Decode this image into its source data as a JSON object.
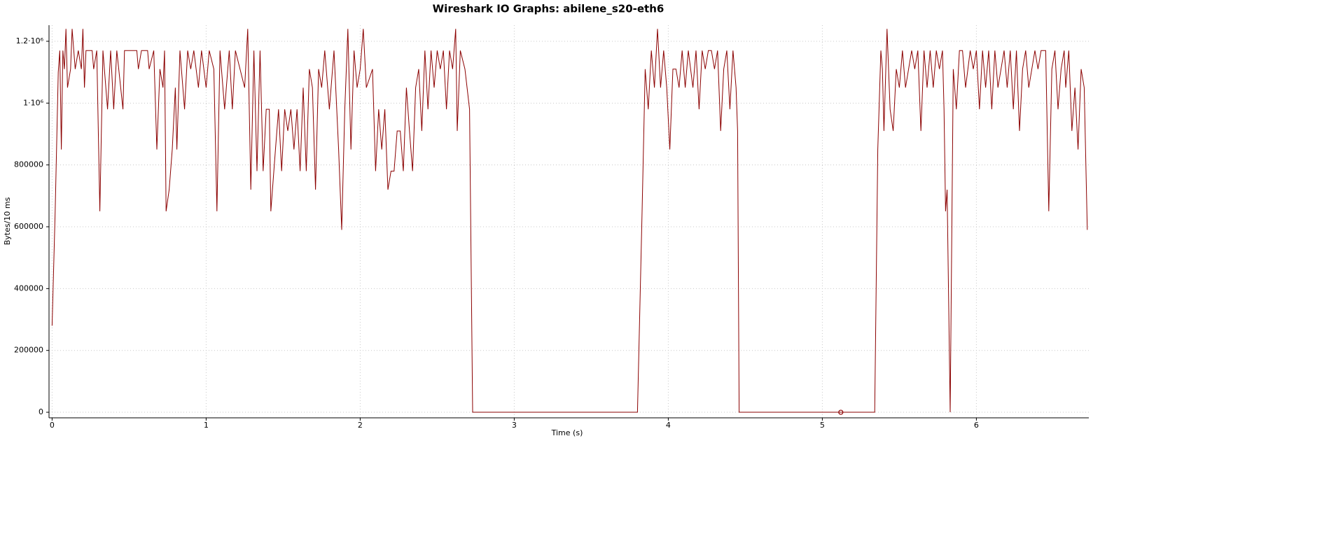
{
  "chart_data": {
    "type": "line",
    "title": "Wireshark IO Graphs: abilene_s20-eth6",
    "x_label": "Time (s)",
    "y_label": "Bytes/10 ms",
    "color": "#8b0000",
    "grid": true,
    "xlim": [
      -0.02,
      6.73
    ],
    "ylim": [
      -18000,
      1252000
    ],
    "xticks": [
      0,
      1,
      2,
      3,
      4,
      5,
      6
    ],
    "yticks": [
      0,
      200000,
      400000,
      600000,
      800000,
      {
        "value": 1000000,
        "label": "1·10⁶"
      },
      {
        "value": 1200000,
        "label": "1.2·10⁶"
      }
    ],
    "tracer": {
      "x": 5.12,
      "y": 0
    },
    "x": [
      0.0,
      0.02,
      0.04,
      0.05,
      0.06,
      0.07,
      0.08,
      0.09,
      0.1,
      0.12,
      0.13,
      0.15,
      0.17,
      0.19,
      0.2,
      0.21,
      0.22,
      0.26,
      0.27,
      0.29,
      0.31,
      0.33,
      0.36,
      0.38,
      0.4,
      0.42,
      0.46,
      0.47,
      0.55,
      0.56,
      0.58,
      0.62,
      0.63,
      0.66,
      0.68,
      0.7,
      0.72,
      0.73,
      0.74,
      0.76,
      0.78,
      0.8,
      0.81,
      0.83,
      0.86,
      0.88,
      0.9,
      0.92,
      0.95,
      0.97,
      1.0,
      1.02,
      1.05,
      1.07,
      1.09,
      1.12,
      1.15,
      1.17,
      1.19,
      1.25,
      1.27,
      1.29,
      1.31,
      1.33,
      1.35,
      1.37,
      1.39,
      1.41,
      1.42,
      1.45,
      1.47,
      1.49,
      1.51,
      1.53,
      1.55,
      1.57,
      1.59,
      1.61,
      1.63,
      1.65,
      1.67,
      1.69,
      1.71,
      1.73,
      1.75,
      1.77,
      1.8,
      1.83,
      1.86,
      1.88,
      1.9,
      1.92,
      1.94,
      1.96,
      1.98,
      2.0,
      2.02,
      2.04,
      2.08,
      2.1,
      2.12,
      2.14,
      2.16,
      2.18,
      2.2,
      2.22,
      2.24,
      2.26,
      2.28,
      2.3,
      2.32,
      2.34,
      2.36,
      2.38,
      2.4,
      2.42,
      2.44,
      2.46,
      2.48,
      2.5,
      2.52,
      2.54,
      2.56,
      2.58,
      2.6,
      2.62,
      2.63,
      2.65,
      2.68,
      2.71,
      2.73,
      3.8,
      3.83,
      3.85,
      3.87,
      3.89,
      3.91,
      3.93,
      3.95,
      3.97,
      3.99,
      4.01,
      4.03,
      4.05,
      4.07,
      4.09,
      4.11,
      4.13,
      4.16,
      4.18,
      4.2,
      4.22,
      4.24,
      4.26,
      4.28,
      4.3,
      4.32,
      4.34,
      4.36,
      4.38,
      4.4,
      4.42,
      4.44,
      4.45,
      4.46,
      5.34,
      5.36,
      5.38,
      5.39,
      5.4,
      5.42,
      5.44,
      5.46,
      5.48,
      5.5,
      5.52,
      5.54,
      5.56,
      5.58,
      5.6,
      5.62,
      5.64,
      5.66,
      5.68,
      5.7,
      5.72,
      5.74,
      5.76,
      5.78,
      5.79,
      5.8,
      5.81,
      5.83,
      5.85,
      5.87,
      5.89,
      5.91,
      5.93,
      5.96,
      5.98,
      6.0,
      6.02,
      6.04,
      6.06,
      6.08,
      6.1,
      6.12,
      6.14,
      6.16,
      6.18,
      6.2,
      6.22,
      6.24,
      6.26,
      6.28,
      6.3,
      6.32,
      6.34,
      6.36,
      6.38,
      6.4,
      6.42,
      6.45,
      6.47,
      6.49,
      6.51,
      6.53,
      6.55,
      6.57,
      6.58,
      6.6,
      6.62,
      6.64,
      6.66,
      6.68,
      6.7,
      6.72
    ],
    "values": [
      280000,
      650000,
      1100000,
      1170000,
      850000,
      1170000,
      1110000,
      1240000,
      1050000,
      1110000,
      1240000,
      1110000,
      1170000,
      1110000,
      1240000,
      1050000,
      1170000,
      1170000,
      1110000,
      1170000,
      650000,
      1170000,
      980000,
      1170000,
      980000,
      1170000,
      980000,
      1170000,
      1170000,
      1110000,
      1170000,
      1170000,
      1110000,
      1170000,
      850000,
      1110000,
      1050000,
      1170000,
      650000,
      720000,
      850000,
      1050000,
      850000,
      1170000,
      980000,
      1170000,
      1110000,
      1170000,
      1050000,
      1170000,
      1050000,
      1170000,
      1110000,
      650000,
      1170000,
      980000,
      1170000,
      980000,
      1170000,
      1050000,
      1240000,
      720000,
      1170000,
      780000,
      1170000,
      780000,
      980000,
      980000,
      650000,
      850000,
      980000,
      780000,
      980000,
      910000,
      980000,
      850000,
      980000,
      780000,
      1050000,
      780000,
      1110000,
      1050000,
      720000,
      1110000,
      1050000,
      1170000,
      980000,
      1170000,
      850000,
      590000,
      980000,
      1240000,
      850000,
      1170000,
      1050000,
      1110000,
      1240000,
      1050000,
      1110000,
      780000,
      980000,
      850000,
      980000,
      720000,
      780000,
      780000,
      910000,
      910000,
      780000,
      1050000,
      910000,
      780000,
      1050000,
      1110000,
      910000,
      1170000,
      980000,
      1170000,
      1050000,
      1170000,
      1110000,
      1170000,
      980000,
      1170000,
      1110000,
      1240000,
      910000,
      1170000,
      1110000,
      980000,
      0,
      0,
      650000,
      1110000,
      980000,
      1170000,
      1050000,
      1240000,
      1050000,
      1170000,
      1050000,
      850000,
      1110000,
      1110000,
      1050000,
      1170000,
      1050000,
      1170000,
      1050000,
      1170000,
      980000,
      1170000,
      1110000,
      1170000,
      1170000,
      1110000,
      1170000,
      910000,
      1110000,
      1170000,
      980000,
      1170000,
      1050000,
      910000,
      0,
      0,
      850000,
      1170000,
      1110000,
      910000,
      1240000,
      980000,
      910000,
      1110000,
      1050000,
      1170000,
      1050000,
      1110000,
      1170000,
      1110000,
      1170000,
      910000,
      1170000,
      1050000,
      1170000,
      1050000,
      1170000,
      1110000,
      1170000,
      980000,
      650000,
      720000,
      0,
      1110000,
      980000,
      1170000,
      1170000,
      1050000,
      1170000,
      1110000,
      1170000,
      980000,
      1170000,
      1050000,
      1170000,
      980000,
      1170000,
      1050000,
      1110000,
      1170000,
      1050000,
      1170000,
      980000,
      1170000,
      910000,
      1110000,
      1170000,
      1050000,
      1110000,
      1170000,
      1110000,
      1170000,
      1170000,
      650000,
      1110000,
      1170000,
      980000,
      1110000,
      1170000,
      1050000,
      1170000,
      910000,
      1050000,
      850000,
      1110000,
      1050000,
      590000
    ]
  }
}
